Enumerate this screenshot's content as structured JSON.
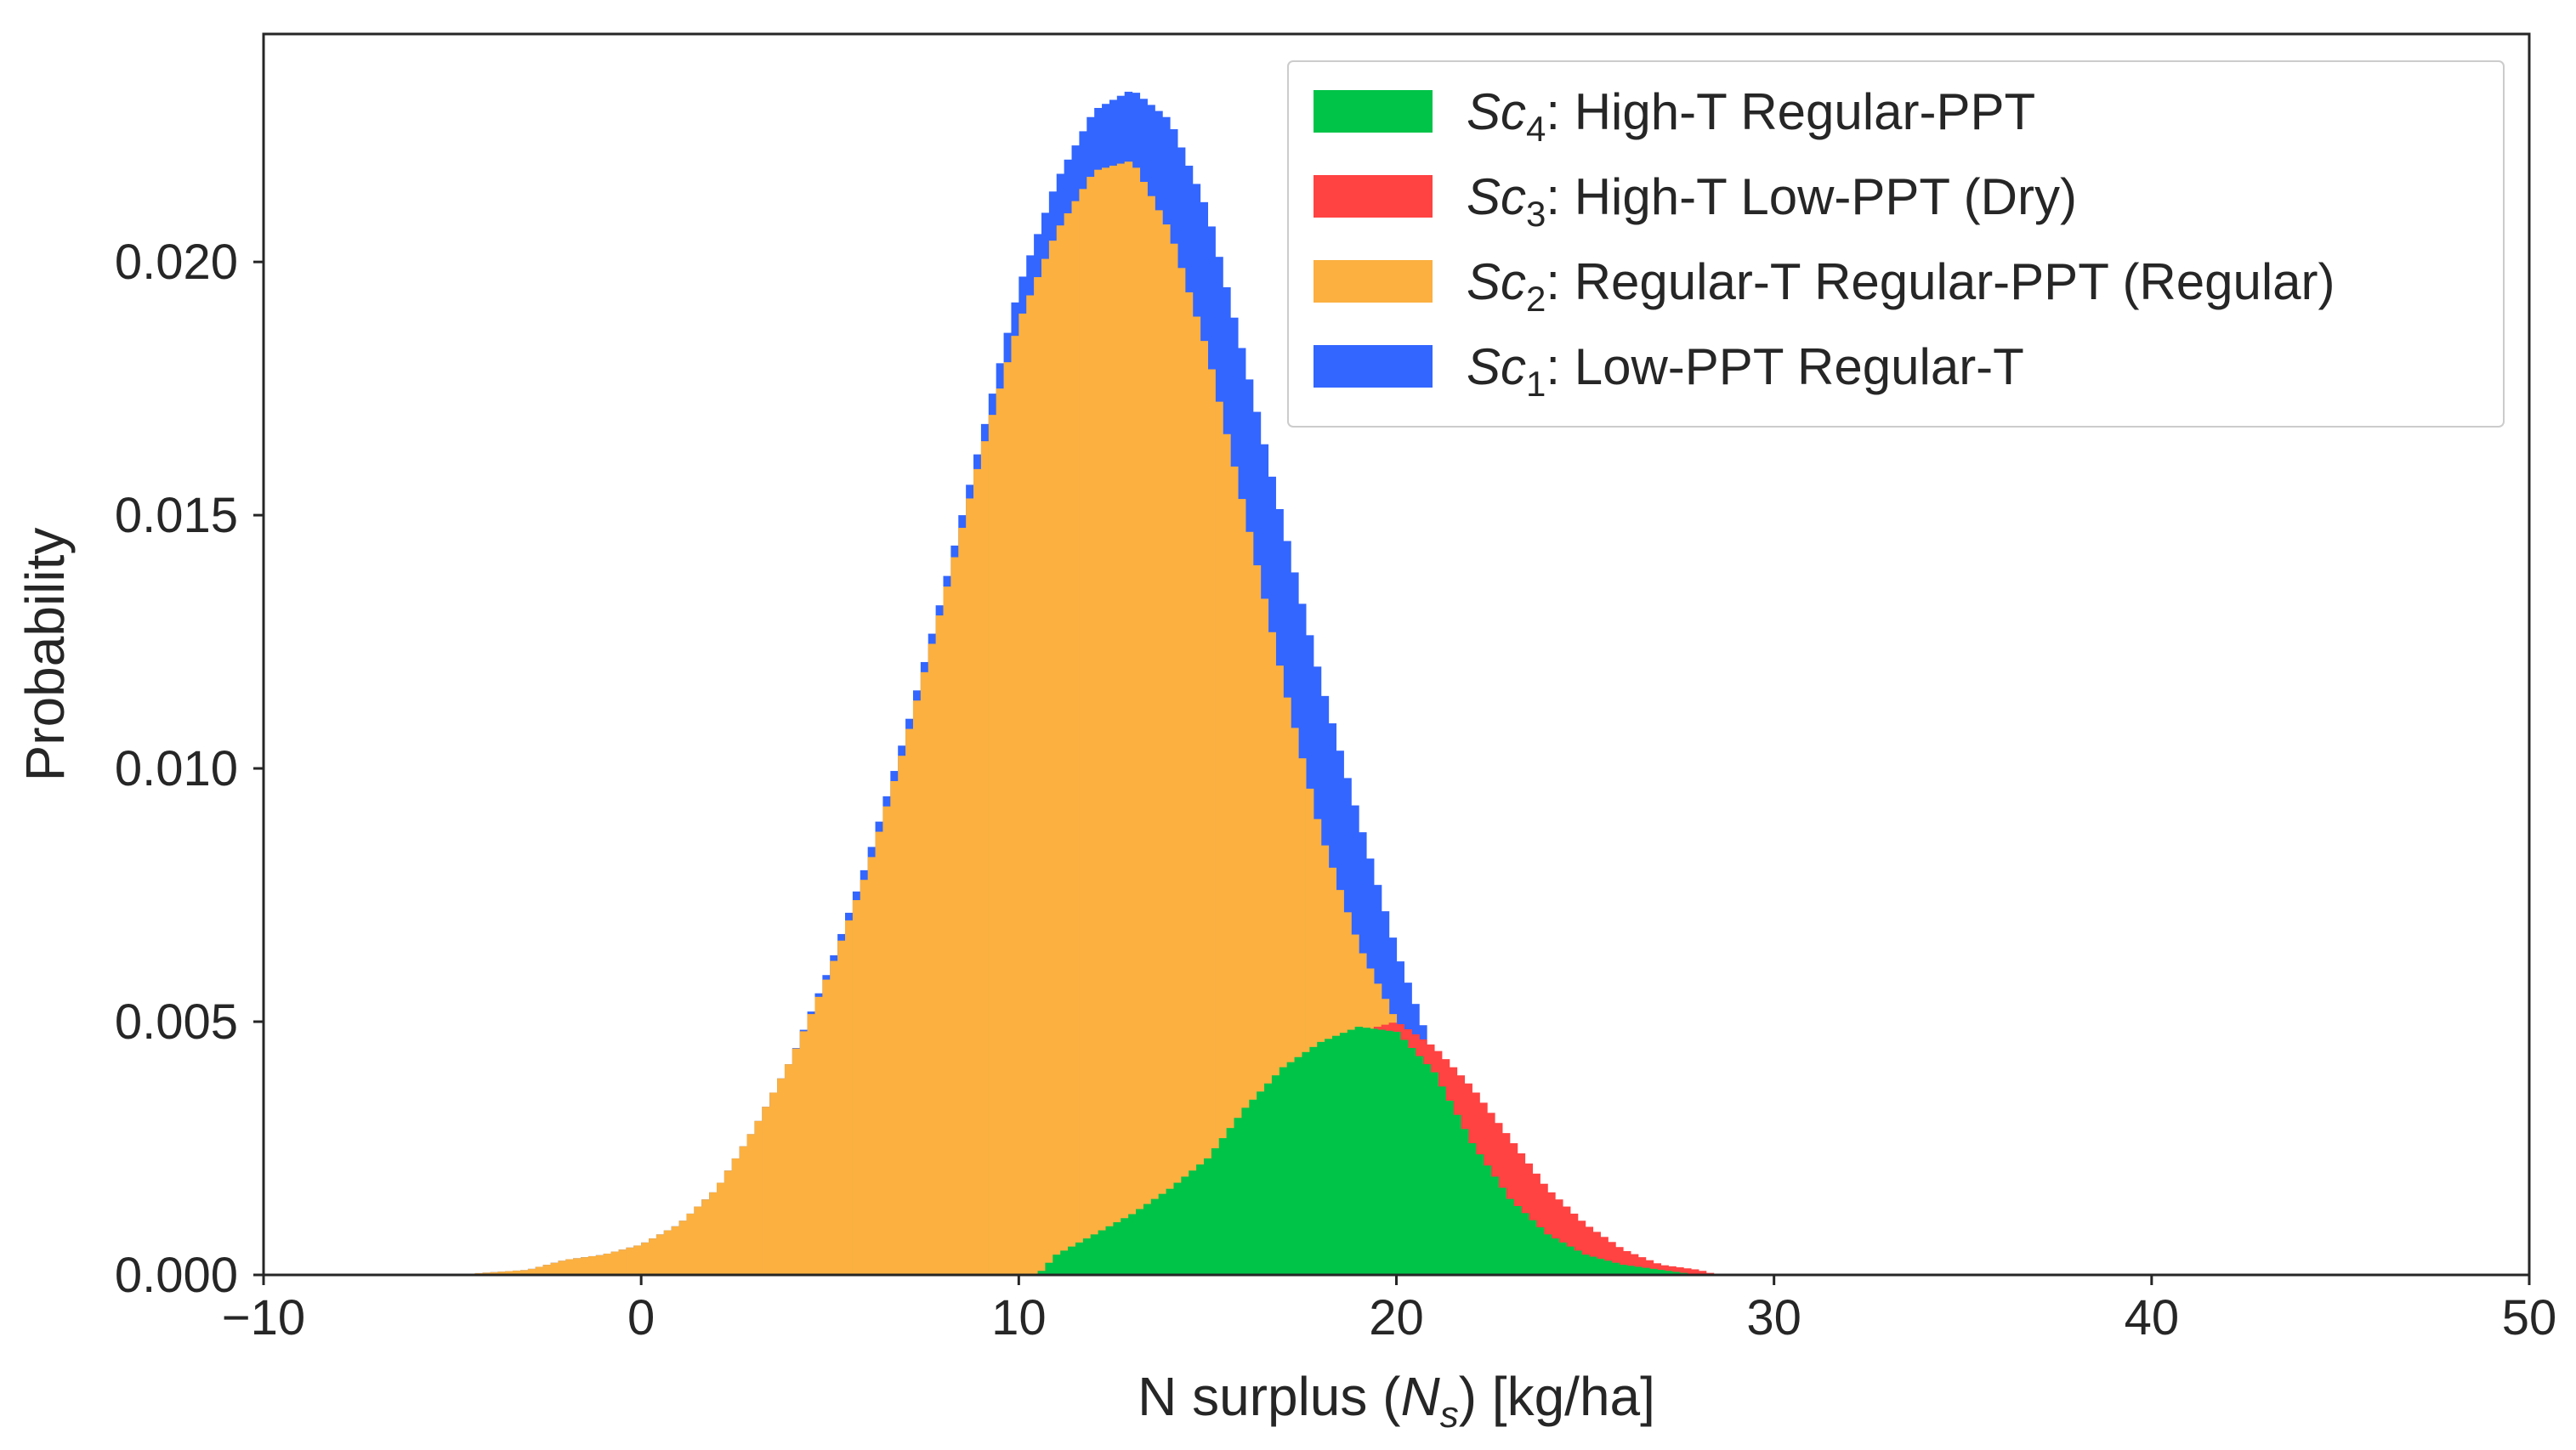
{
  "chart_data": {
    "type": "histogram",
    "title": "",
    "xlabel": "N surplus (N_s) [kg/ha]",
    "xlabel_parts": {
      "pre": "N surplus (",
      "var": "N",
      "sub": "s",
      "post": ") [kg/ha]"
    },
    "ylabel": "Probability",
    "xlim": [
      -10,
      50
    ],
    "ylim": [
      0,
      0.0245
    ],
    "xticks": [
      -10,
      0,
      10,
      20,
      30,
      40,
      50
    ],
    "xtick_labels": [
      "−10",
      "0",
      "10",
      "20",
      "30",
      "40",
      "50"
    ],
    "yticks": [
      0.0,
      0.005,
      0.01,
      0.015,
      0.02
    ],
    "ytick_labels": [
      "0.000",
      "0.005",
      "0.010",
      "0.015",
      "0.020"
    ],
    "grid": false,
    "legend_position": "top-right",
    "series": [
      {
        "name": "Sc4: High-T Regular-PPT",
        "label_var": "Sc",
        "label_sub": "4",
        "label_rest": ": High-T Regular-PPT",
        "color": "#00c448",
        "x": [
          10.5,
          11.0,
          12.0,
          13.0,
          14.0,
          15.0,
          16.0,
          17.0,
          18.0,
          19.0,
          20.0,
          21.0,
          22.0,
          23.0,
          24.0,
          25.0,
          26.0,
          27.0,
          28.0
        ],
        "values": [
          0.0,
          0.0004,
          0.0008,
          0.0012,
          0.0017,
          0.0023,
          0.0033,
          0.0041,
          0.0046,
          0.0049,
          0.0048,
          0.004,
          0.0026,
          0.0015,
          0.0008,
          0.0004,
          0.0002,
          0.0001,
          0.0
        ]
      },
      {
        "name": "Sc3: High-T Low-PPT (Dry)",
        "label_var": "Sc",
        "label_sub": "3",
        "label_rest": ": High-T Low-PPT (Dry)",
        "color": "#ff4242",
        "x": [
          19.0,
          20.0,
          21.0,
          22.0,
          23.0,
          24.0,
          25.0,
          26.0,
          27.0,
          28.0,
          28.5
        ],
        "values": [
          0.0048,
          0.005,
          0.0045,
          0.0037,
          0.0027,
          0.0017,
          0.001,
          0.0005,
          0.0002,
          0.0001,
          0.0
        ]
      },
      {
        "name": "Sc2: Regular-T Regular-PPT (Regular)",
        "label_var": "Sc",
        "label_sub": "2",
        "label_rest": ": Regular-T Regular-PPT (Regular)",
        "color": "#fbb040",
        "x": [
          -5,
          -4,
          -3,
          -2,
          -1,
          0,
          1,
          2,
          3,
          4,
          5,
          6,
          7,
          8,
          9,
          10,
          11,
          12,
          13,
          14,
          15,
          16,
          17,
          18,
          19,
          20,
          21
        ],
        "values": [
          0.0,
          5e-05,
          0.0001,
          0.0003,
          0.0004,
          0.0006,
          0.001,
          0.0017,
          0.0029,
          0.0043,
          0.006,
          0.008,
          0.0105,
          0.0133,
          0.0162,
          0.0188,
          0.0206,
          0.0218,
          0.022,
          0.0206,
          0.0182,
          0.015,
          0.0117,
          0.0087,
          0.0065,
          0.005,
          0.0
        ]
      },
      {
        "name": "Sc1: Low-PPT Regular-T",
        "label_var": "Sc",
        "label_sub": "1",
        "label_rest": ": Low-PPT Regular-T",
        "color": "#3366ff",
        "x": [
          -5,
          -4,
          -3,
          -2,
          -1,
          0,
          1,
          2,
          3,
          4,
          5,
          6,
          7,
          8,
          9,
          10,
          11,
          12,
          13,
          14,
          15,
          16,
          17,
          18,
          19,
          20,
          21,
          22,
          23,
          24,
          25,
          26,
          27
        ],
        "values": [
          0.0,
          5e-05,
          0.0001,
          0.0003,
          0.0004,
          0.0006,
          0.001,
          0.0017,
          0.0029,
          0.0043,
          0.0061,
          0.0082,
          0.0107,
          0.0135,
          0.0165,
          0.0195,
          0.0216,
          0.023,
          0.0234,
          0.0228,
          0.021,
          0.018,
          0.0148,
          0.0117,
          0.009,
          0.0064,
          0.0043,
          0.0028,
          0.0018,
          0.0008,
          0.0003,
          0.0001,
          0.0
        ]
      }
    ]
  }
}
